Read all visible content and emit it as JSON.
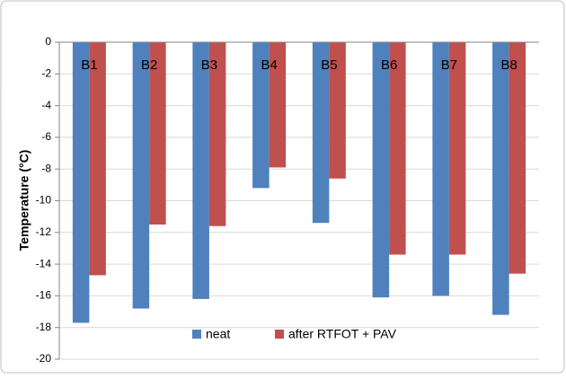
{
  "chart_data": {
    "type": "bar",
    "y_label": "Temperature (°C)",
    "categories": [
      "B1",
      "B2",
      "B3",
      "B4",
      "B5",
      "B6",
      "B7",
      "B8"
    ],
    "series": [
      {
        "name": "neat",
        "color": "#4f81bd",
        "values": [
          -17.7,
          -16.8,
          -16.2,
          -9.2,
          -11.4,
          -16.1,
          -16.0,
          -17.2
        ]
      },
      {
        "name": "after RTFOT + PAV",
        "color": "#c0504d",
        "values": [
          -14.7,
          -11.5,
          -11.6,
          -7.9,
          -8.6,
          -13.4,
          -13.4,
          -14.6
        ]
      }
    ],
    "ylim": [
      -20,
      0
    ],
    "yticks": [
      -20,
      -18,
      -16,
      -14,
      -12,
      -10,
      -8,
      -6,
      -4,
      -2,
      0
    ],
    "grid": true
  }
}
